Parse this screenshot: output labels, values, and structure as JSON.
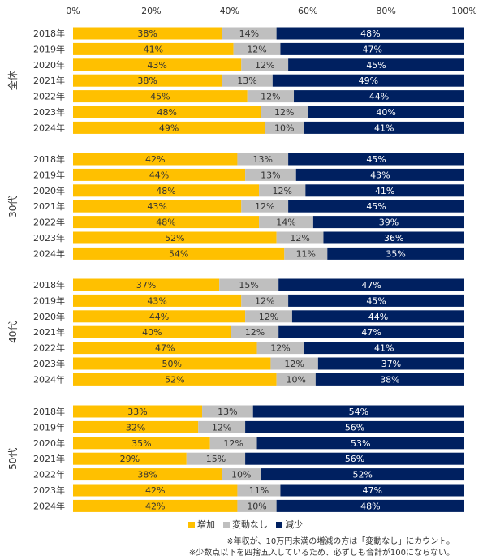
{
  "chart_data": {
    "type": "bar",
    "orientation": "horizontal",
    "stacked": true,
    "percent": true,
    "xlim": [
      0,
      100
    ],
    "x_ticks": [
      "0%",
      "20%",
      "40%",
      "60%",
      "80%",
      "100%"
    ],
    "grid": false,
    "legend_position": "bottom",
    "categories": [
      "2018年",
      "2019年",
      "2020年",
      "2021年",
      "2022年",
      "2023年",
      "2024年"
    ],
    "series_names": [
      "増加",
      "変動なし",
      "減少"
    ],
    "colors": [
      "#FFC000",
      "#BFBFBF",
      "#002060"
    ],
    "label_colors": [
      "#333333",
      "#333333",
      "#FFFFFF"
    ],
    "groups": [
      {
        "name": "全体",
        "values": [
          [
            38,
            14,
            48
          ],
          [
            41,
            12,
            47
          ],
          [
            43,
            12,
            45
          ],
          [
            38,
            13,
            49
          ],
          [
            45,
            12,
            44
          ],
          [
            48,
            12,
            40
          ],
          [
            49,
            10,
            41
          ]
        ]
      },
      {
        "name": "30代",
        "values": [
          [
            42,
            13,
            45
          ],
          [
            44,
            13,
            43
          ],
          [
            48,
            12,
            41
          ],
          [
            43,
            12,
            45
          ],
          [
            48,
            14,
            39
          ],
          [
            52,
            12,
            36
          ],
          [
            54,
            11,
            35
          ]
        ]
      },
      {
        "name": "40代",
        "values": [
          [
            37,
            15,
            47
          ],
          [
            43,
            12,
            45
          ],
          [
            44,
            12,
            44
          ],
          [
            40,
            12,
            47
          ],
          [
            47,
            12,
            41
          ],
          [
            50,
            12,
            37
          ],
          [
            52,
            10,
            38
          ]
        ]
      },
      {
        "name": "50代",
        "values": [
          [
            33,
            13,
            54
          ],
          [
            32,
            12,
            56
          ],
          [
            35,
            12,
            53
          ],
          [
            29,
            15,
            56
          ],
          [
            38,
            10,
            52
          ],
          [
            42,
            11,
            47
          ],
          [
            42,
            10,
            48
          ]
        ]
      }
    ]
  },
  "legend": {
    "items": [
      "増加",
      "変動なし",
      "減少"
    ]
  },
  "notes": [
    "※年収が、10万円未満の増減の方は「変動なし」にカウント。",
    "※少数点以下を四捨五入しているため、必ずしも合計が100にならない。"
  ]
}
